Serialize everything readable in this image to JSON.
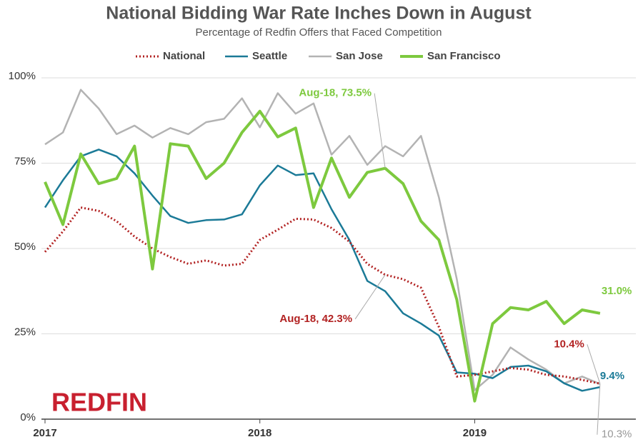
{
  "chart_data": {
    "type": "line",
    "title": "National Bidding War Rate Inches Down in August",
    "subtitle": "Percentage of Redfin Offers that Faced Competition",
    "logo": "REDFIN",
    "categories": [
      "2017",
      null,
      null,
      null,
      null,
      null,
      null,
      null,
      null,
      null,
      null,
      null,
      "2018",
      null,
      null,
      null,
      null,
      null,
      null,
      null,
      null,
      null,
      null,
      null,
      "2019",
      null,
      null,
      null,
      null,
      null,
      null,
      null
    ],
    "ylim": [
      0,
      100
    ],
    "yticks": [
      {
        "value": 0,
        "label": "0%"
      },
      {
        "value": 25,
        "label": "25%"
      },
      {
        "value": 50,
        "label": "50%"
      },
      {
        "value": 75,
        "label": "75%"
      },
      {
        "value": 100,
        "label": "100%"
      }
    ],
    "grid": true,
    "legend": "top",
    "series": [
      {
        "name": "National",
        "color": "#b22222",
        "style": "dotted",
        "values": [
          49,
          55,
          62,
          61,
          58,
          53.5,
          50,
          47.5,
          45.5,
          46.5,
          45,
          45.5,
          52.5,
          55.5,
          58.7,
          58.5,
          56,
          52,
          45.5,
          42.3,
          41,
          38.5,
          27,
          12.5,
          13,
          14,
          15,
          14.5,
          13,
          12.5,
          11.5,
          10.4
        ],
        "value_labels": [
          null,
          null,
          null,
          null,
          null,
          null,
          null,
          null,
          null,
          null,
          null,
          null,
          null,
          null,
          null,
          null,
          null,
          null,
          null,
          "Aug-18, 42.3%",
          null,
          null,
          null,
          null,
          null,
          null,
          null,
          null,
          null,
          null,
          null,
          "10.4%"
        ]
      },
      {
        "name": "Seattle",
        "color": "#1b7a97",
        "style": "solid",
        "values": [
          62,
          70,
          77,
          79,
          77,
          72,
          65.5,
          59.5,
          57.5,
          58.3,
          58.5,
          60,
          68.5,
          74.3,
          71.5,
          72,
          61.5,
          52.5,
          40.5,
          37.5,
          31,
          28,
          24.5,
          13.7,
          13.3,
          12,
          15.3,
          15.7,
          14,
          10.5,
          8.3,
          9.4
        ],
        "value_labels": [
          null,
          null,
          null,
          null,
          null,
          null,
          null,
          null,
          null,
          null,
          null,
          null,
          null,
          null,
          null,
          null,
          null,
          null,
          null,
          null,
          null,
          null,
          null,
          null,
          null,
          null,
          null,
          null,
          null,
          null,
          null,
          "9.4%"
        ]
      },
      {
        "name": "San Jose",
        "color": "#b3b3b3",
        "style": "solid",
        "values": [
          80.5,
          84,
          96.5,
          91,
          83.5,
          86,
          82.5,
          85.3,
          83.5,
          87,
          88,
          94,
          85.5,
          95.5,
          89.5,
          92.5,
          77.5,
          83,
          74.5,
          80,
          77,
          83,
          65,
          41,
          8.5,
          13,
          21,
          17.5,
          14.5,
          10.5,
          12.5,
          10.3
        ],
        "value_labels": [
          null,
          null,
          null,
          null,
          null,
          null,
          null,
          null,
          null,
          null,
          null,
          null,
          null,
          null,
          null,
          null,
          null,
          null,
          null,
          null,
          null,
          null,
          null,
          null,
          null,
          null,
          null,
          null,
          null,
          null,
          null,
          "10.3%"
        ]
      },
      {
        "name": "San Francisco",
        "color": "#7dc93e",
        "style": "thick",
        "values": [
          69.5,
          57,
          77.7,
          69,
          70.5,
          80,
          44,
          80.7,
          80,
          70.5,
          75,
          84,
          90.2,
          82.7,
          85.3,
          62,
          76.5,
          65,
          72.3,
          73.5,
          69,
          58,
          52.5,
          35,
          5.3,
          28,
          32.7,
          32,
          34.5,
          28,
          32,
          31
        ],
        "value_labels": [
          null,
          null,
          null,
          null,
          null,
          null,
          null,
          null,
          null,
          null,
          null,
          null,
          null,
          null,
          null,
          null,
          null,
          null,
          null,
          "Aug-18, 73.5%",
          null,
          null,
          null,
          null,
          null,
          null,
          null,
          null,
          null,
          null,
          null,
          "31.0%"
        ]
      }
    ]
  }
}
